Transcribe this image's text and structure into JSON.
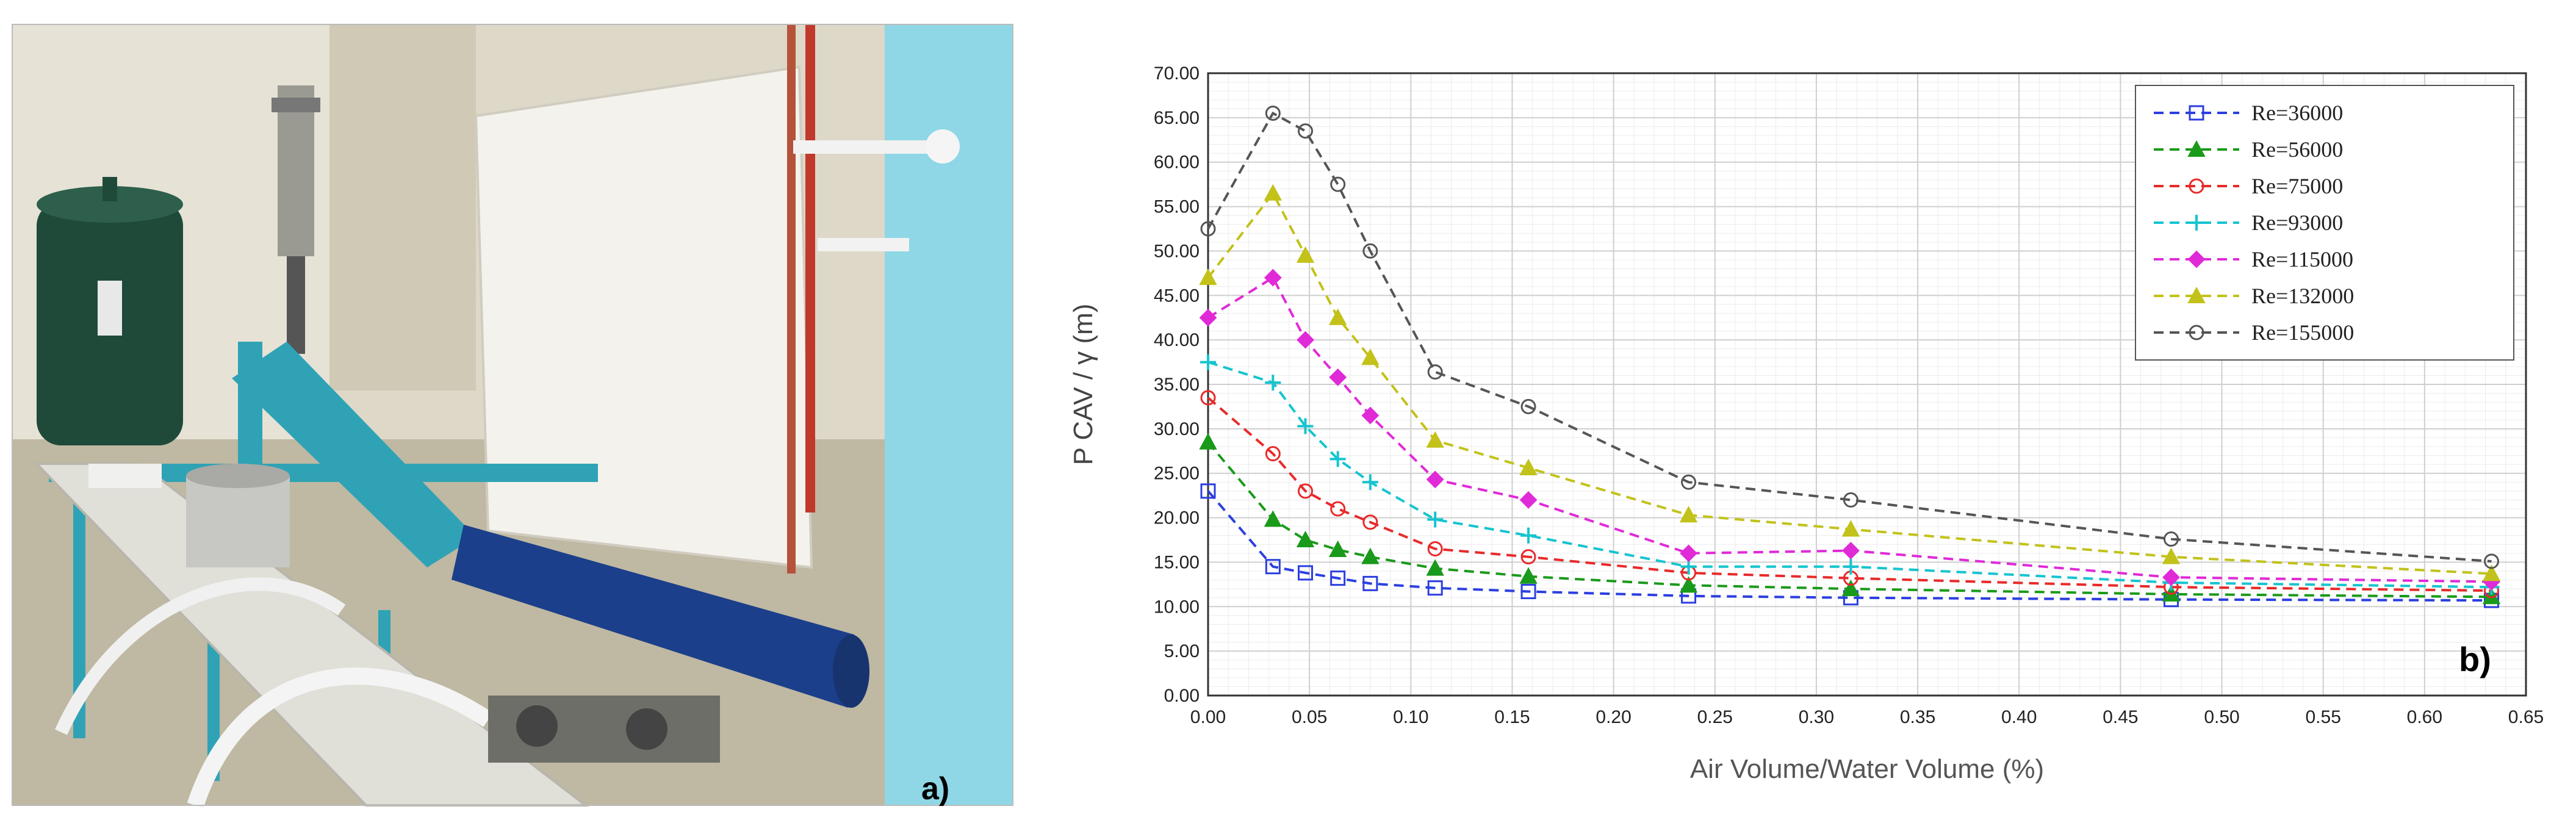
{
  "panels": {
    "photo_label": "a)",
    "chart_label": "b)"
  },
  "colors": {
    "wall": "#d9d4c6",
    "tank": "#1f4a3a",
    "frame": "#2fa3b5",
    "pipe": "#1b3f8a"
  },
  "chart_data": {
    "type": "line",
    "xlabel": "Air Volume/Water Volume (%)",
    "ylabel": "P CAV / γ (m)",
    "xlim": [
      0,
      0.65
    ],
    "ylim": [
      0,
      70
    ],
    "xticks": [
      "0.00",
      "0.05",
      "0.10",
      "0.15",
      "0.20",
      "0.25",
      "0.30",
      "0.35",
      "0.40",
      "0.45",
      "0.50",
      "0.55",
      "0.60",
      "0.65"
    ],
    "yticks": [
      "0.00",
      "5.00",
      "10.00",
      "15.00",
      "20.00",
      "25.00",
      "30.00",
      "35.00",
      "40.00",
      "45.00",
      "50.00",
      "55.00",
      "60.00",
      "65.00",
      "70.00"
    ],
    "grid": true,
    "legend_position": "top-right",
    "x": [
      0,
      0.032,
      0.048,
      0.064,
      0.08,
      0.112,
      0.158,
      0.237,
      0.317,
      0.475,
      0.633
    ],
    "series": [
      {
        "name": "Re=36000",
        "color": "#2b3fe0",
        "marker": "square",
        "values": [
          23.0,
          14.5,
          13.8,
          13.2,
          12.6,
          12.1,
          11.7,
          11.2,
          11.0,
          10.8,
          10.7
        ]
      },
      {
        "name": "Re=56000",
        "color": "#1a9a1a",
        "marker": "triangle",
        "values": [
          28.5,
          19.8,
          17.5,
          16.4,
          15.6,
          14.3,
          13.4,
          12.4,
          12.0,
          11.4,
          11.1
        ]
      },
      {
        "name": "Re=75000",
        "color": "#e82a2a",
        "marker": "circle",
        "values": [
          33.5,
          27.2,
          23.0,
          21.0,
          19.5,
          16.5,
          15.6,
          13.8,
          13.2,
          12.2,
          11.8
        ]
      },
      {
        "name": "Re=93000",
        "color": "#16c4cf",
        "marker": "plus",
        "values": [
          37.5,
          35.2,
          30.3,
          26.6,
          24.0,
          19.8,
          18.0,
          14.5,
          14.5,
          12.7,
          12.2
        ]
      },
      {
        "name": "Re=115000",
        "color": "#e02ad8",
        "marker": "diamond",
        "values": [
          42.5,
          47.0,
          40.0,
          35.8,
          31.5,
          24.3,
          22.0,
          16.0,
          16.3,
          13.3,
          12.8
        ]
      },
      {
        "name": "Re=132000",
        "color": "#c2c21a",
        "marker": "triangle",
        "values": [
          47.0,
          56.5,
          49.5,
          42.5,
          38.0,
          28.7,
          25.6,
          20.3,
          18.7,
          15.6,
          13.7
        ]
      },
      {
        "name": "Re=155000",
        "color": "#555555",
        "marker": "circle",
        "values": [
          52.5,
          65.5,
          63.5,
          57.5,
          50.0,
          36.4,
          32.5,
          24.0,
          22.0,
          17.6,
          15.1
        ]
      }
    ]
  }
}
